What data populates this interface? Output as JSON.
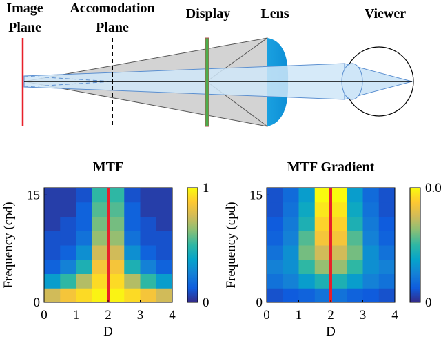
{
  "diagram": {
    "image_plane": [
      "Image",
      "Plane"
    ],
    "accommodation_plane": [
      "Accomodation",
      "Plane"
    ],
    "display": "Display",
    "lens": "Lens",
    "viewer": "Viewer"
  },
  "chart_data": [
    {
      "type": "heatmap",
      "title": "MTF",
      "xlabel": "D",
      "ylabel": "Frequency (cpd)",
      "xlim": [
        0,
        4
      ],
      "xticks": [
        0,
        1,
        2,
        3,
        4
      ],
      "ylim": [
        0,
        16
      ],
      "yticks": [
        0,
        15
      ],
      "x": [
        0.25,
        0.75,
        1.25,
        1.75,
        2.25,
        2.75,
        3.25,
        3.75
      ],
      "y": [
        1,
        3,
        5,
        7,
        9,
        11,
        13,
        15
      ],
      "z": [
        [
          0.75,
          0.85,
          0.92,
          0.98,
          0.98,
          0.92,
          0.85,
          0.75
        ],
        [
          0.35,
          0.5,
          0.7,
          0.92,
          0.92,
          0.7,
          0.5,
          0.35
        ],
        [
          0.15,
          0.25,
          0.45,
          0.85,
          0.85,
          0.45,
          0.25,
          0.15
        ],
        [
          0.1,
          0.15,
          0.3,
          0.75,
          0.75,
          0.3,
          0.15,
          0.1
        ],
        [
          0.1,
          0.1,
          0.2,
          0.65,
          0.65,
          0.2,
          0.1,
          0.1
        ],
        [
          0.05,
          0.1,
          0.15,
          0.6,
          0.6,
          0.15,
          0.1,
          0.05
        ],
        [
          0.05,
          0.05,
          0.15,
          0.55,
          0.55,
          0.15,
          0.05,
          0.05
        ],
        [
          0.05,
          0.05,
          0.1,
          0.5,
          0.5,
          0.1,
          0.05,
          0.05
        ]
      ],
      "clim": [
        0,
        1
      ],
      "cticks": [
        0,
        1
      ],
      "marker_x": 2,
      "marker_color": "#e8202a",
      "colormap": [
        "#352a87",
        "#0f5cdd",
        "#1481d6",
        "#06a4ca",
        "#2eb7a4",
        "#87bf77",
        "#d1bb59",
        "#fec832",
        "#f9fb0e"
      ]
    },
    {
      "type": "heatmap",
      "title": "MTF Gradient",
      "xlabel": "D",
      "ylabel": "Frequency (cpd)",
      "xlim": [
        0,
        4
      ],
      "xticks": [
        0,
        1,
        2,
        3,
        4
      ],
      "ylim": [
        0,
        16
      ],
      "yticks": [
        0,
        15
      ],
      "x": [
        0.25,
        0.75,
        1.25,
        1.75,
        2.25,
        2.75,
        3.25,
        3.75
      ],
      "y": [
        1,
        3,
        5,
        7,
        9,
        11,
        13,
        15
      ],
      "z": [
        [
          0.004,
          0.005,
          0.006,
          0.008,
          0.008,
          0.006,
          0.005,
          0.004
        ],
        [
          0.008,
          0.01,
          0.014,
          0.018,
          0.018,
          0.014,
          0.01,
          0.008
        ],
        [
          0.01,
          0.012,
          0.02,
          0.026,
          0.026,
          0.02,
          0.012,
          0.01
        ],
        [
          0.008,
          0.012,
          0.024,
          0.03,
          0.03,
          0.024,
          0.012,
          0.008
        ],
        [
          0.006,
          0.01,
          0.022,
          0.034,
          0.034,
          0.022,
          0.01,
          0.006
        ],
        [
          0.005,
          0.009,
          0.018,
          0.036,
          0.036,
          0.018,
          0.009,
          0.005
        ],
        [
          0.004,
          0.008,
          0.016,
          0.038,
          0.038,
          0.016,
          0.008,
          0.004
        ],
        [
          0.004,
          0.007,
          0.014,
          0.04,
          0.04,
          0.014,
          0.007,
          0.004
        ]
      ],
      "clim": [
        0,
        0.04
      ],
      "cticks": [
        0,
        {
          "value": 0.04,
          "label": "0.0"
        }
      ],
      "marker_x": 2,
      "marker_color": "#e8202a",
      "colormap": [
        "#352a87",
        "#0f5cdd",
        "#1481d6",
        "#06a4ca",
        "#2eb7a4",
        "#87bf77",
        "#d1bb59",
        "#fec832",
        "#f9fb0e"
      ]
    }
  ]
}
